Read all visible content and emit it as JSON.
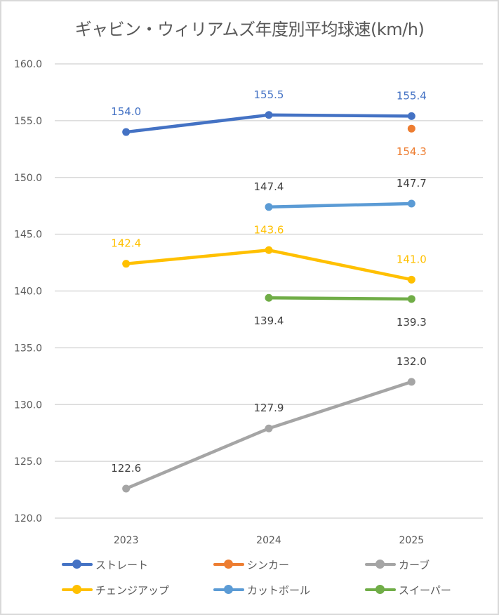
{
  "chart_data": {
    "type": "line",
    "title": "ギャビン・ウィリアムズ年度別平均球速(km/h)",
    "xlabel": "",
    "ylabel": "",
    "categories": [
      "2023",
      "2024",
      "2025"
    ],
    "ylim": [
      120.0,
      160.0
    ],
    "y_ticks": [
      "120.0",
      "125.0",
      "130.0",
      "135.0",
      "140.0",
      "145.0",
      "150.0",
      "155.0",
      "160.0"
    ],
    "grid": true,
    "legend_position": "bottom",
    "series": [
      {
        "name": "ストレート",
        "color": "#4472c4",
        "label_color": "#4472c4",
        "label_pos": "above",
        "values": [
          154.0,
          155.5,
          155.4
        ],
        "labels": [
          "154.0",
          "155.5",
          "155.4"
        ]
      },
      {
        "name": "シンカー",
        "color": "#ed7d31",
        "label_color": "#ed7d31",
        "label_pos": "below",
        "values": [
          null,
          null,
          154.3
        ],
        "labels": [
          "",
          "",
          "154.3"
        ]
      },
      {
        "name": "カーブ",
        "color": "#a5a5a5",
        "label_color": "#404040",
        "label_pos": "above",
        "values": [
          122.6,
          127.9,
          132.0
        ],
        "labels": [
          "122.6",
          "127.9",
          "132.0"
        ]
      },
      {
        "name": "チェンジアップ",
        "color": "#ffc000",
        "label_color": "#ffc000",
        "label_pos": "above",
        "values": [
          142.4,
          143.6,
          141.0
        ],
        "labels": [
          "142.4",
          "143.6",
          "141.0"
        ]
      },
      {
        "name": "カットボール",
        "color": "#5b9bd5",
        "label_color": "#404040",
        "label_pos": "above",
        "values": [
          null,
          147.4,
          147.7
        ],
        "labels": [
          "",
          "147.4",
          "147.7"
        ]
      },
      {
        "name": "スイーパー",
        "color": "#70ad47",
        "label_color": "#404040",
        "label_pos": "below",
        "values": [
          null,
          139.4,
          139.3
        ],
        "labels": [
          "",
          "139.4",
          "139.3"
        ]
      }
    ]
  }
}
